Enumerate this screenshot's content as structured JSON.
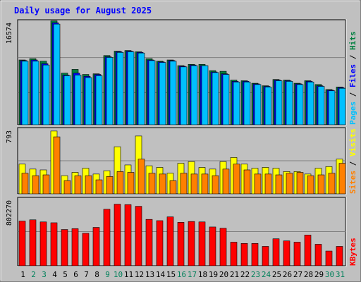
{
  "chart_data": [
    {
      "type": "bar",
      "title": "Daily usage for August 2025",
      "categories": [
        "1",
        "2",
        "3",
        "4",
        "5",
        "6",
        "7",
        "8",
        "9",
        "10",
        "11",
        "12",
        "13",
        "14",
        "15",
        "16",
        "17",
        "18",
        "19",
        "20",
        "21",
        "22",
        "23",
        "24",
        "25",
        "26",
        "27",
        "28",
        "29",
        "30",
        "31"
      ],
      "weekend_days": [
        "2",
        "3",
        "9",
        "10",
        "16",
        "17",
        "23",
        "24",
        "30",
        "31"
      ],
      "ylabel_max": "16574",
      "ylim": [
        0,
        16574
      ],
      "series": [
        {
          "name": "Hits",
          "color": "#008040",
          "values": [
            10300,
            10500,
            10100,
            16500,
            8200,
            8800,
            8000,
            8100,
            11000,
            11700,
            11800,
            11600,
            10500,
            10100,
            10300,
            9400,
            9600,
            9600,
            8600,
            8500,
            7100,
            7000,
            6600,
            6200,
            7200,
            7100,
            6600,
            7000,
            6400,
            5600,
            6000
          ]
        },
        {
          "name": "Files",
          "color": "#0000ff",
          "values": [
            10200,
            10300,
            9700,
            16200,
            7900,
            8200,
            7700,
            8000,
            10800,
            11600,
            11700,
            11500,
            10300,
            10000,
            10200,
            9300,
            9500,
            9400,
            8400,
            8100,
            6900,
            6900,
            6500,
            6100,
            7100,
            7000,
            6500,
            6900,
            6200,
            5500,
            5900
          ]
        },
        {
          "name": "Pages",
          "color": "#00c0ff",
          "values": [
            10100,
            10100,
            9500,
            16000,
            7800,
            7900,
            7500,
            7800,
            10700,
            11500,
            11600,
            11400,
            10200,
            9900,
            10100,
            9200,
            9400,
            9400,
            8300,
            8000,
            6800,
            6800,
            6400,
            6000,
            7000,
            6900,
            6400,
            6800,
            6100,
            5400,
            5800
          ]
        }
      ]
    },
    {
      "type": "bar",
      "categories": [
        "1",
        "2",
        "3",
        "4",
        "5",
        "6",
        "7",
        "8",
        "9",
        "10",
        "11",
        "12",
        "13",
        "14",
        "15",
        "16",
        "17",
        "18",
        "19",
        "20",
        "21",
        "22",
        "23",
        "24",
        "25",
        "26",
        "27",
        "28",
        "29",
        "30",
        "31"
      ],
      "ylabel_max": "793",
      "ylim": [
        0,
        793
      ],
      "series": [
        {
          "name": "Visits",
          "color": "#ffff00",
          "values": [
            360,
            300,
            290,
            760,
            220,
            260,
            310,
            240,
            280,
            570,
            350,
            700,
            340,
            320,
            250,
            370,
            390,
            320,
            300,
            390,
            440,
            360,
            310,
            320,
            310,
            270,
            270,
            240,
            310,
            330,
            420
          ]
        },
        {
          "name": "Sites",
          "color": "#ff8000",
          "values": [
            250,
            220,
            230,
            690,
            160,
            220,
            220,
            170,
            210,
            270,
            260,
            420,
            250,
            240,
            160,
            250,
            240,
            240,
            220,
            300,
            360,
            290,
            240,
            240,
            230,
            250,
            260,
            220,
            230,
            250,
            370
          ]
        }
      ]
    },
    {
      "type": "bar",
      "categories": [
        "1",
        "2",
        "3",
        "4",
        "5",
        "6",
        "7",
        "8",
        "9",
        "10",
        "11",
        "12",
        "13",
        "14",
        "15",
        "16",
        "17",
        "18",
        "19",
        "20",
        "21",
        "22",
        "23",
        "24",
        "25",
        "26",
        "27",
        "28",
        "29",
        "30",
        "31"
      ],
      "ylabel_max": "802270",
      "ylim": [
        0,
        802270
      ],
      "series": [
        {
          "name": "KBytes",
          "color": "#ff0000",
          "values": [
            530000,
            545000,
            520000,
            510000,
            430000,
            440000,
            385000,
            455000,
            670000,
            730000,
            725000,
            705000,
            550000,
            535000,
            580000,
            515000,
            525000,
            520000,
            460000,
            445000,
            280000,
            265000,
            265000,
            230000,
            320000,
            295000,
            280000,
            365000,
            255000,
            175000,
            230000
          ]
        }
      ]
    }
  ]
}
